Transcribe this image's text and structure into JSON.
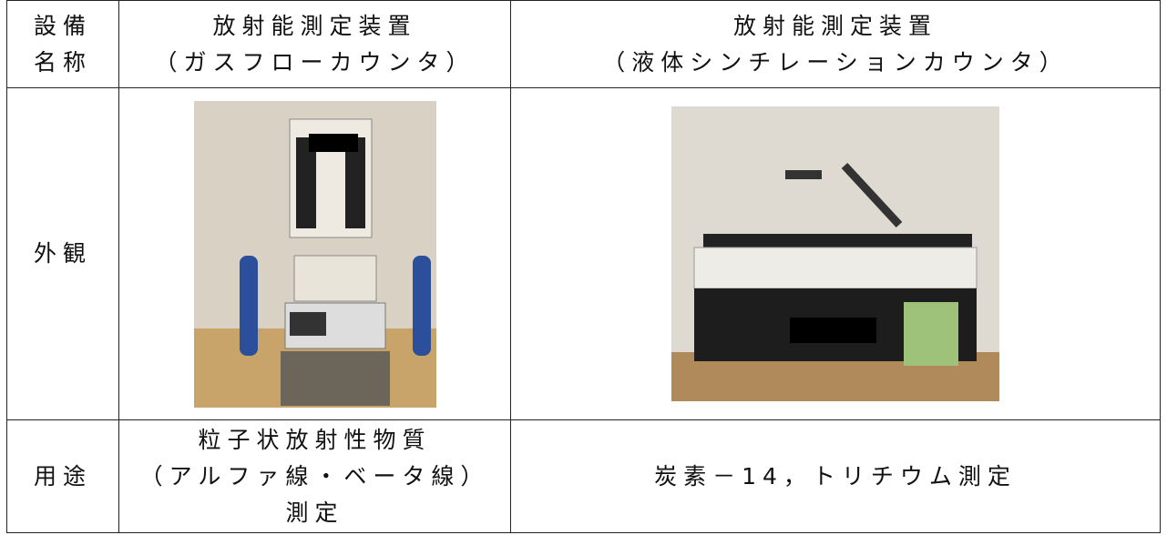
{
  "table": {
    "header": {
      "label": [
        "設備",
        "名称"
      ],
      "columns": [
        [
          "放射能測定装置",
          "（ガスフローカウンタ）"
        ],
        [
          "放射能測定装置",
          "（液体シンチレーションカウンタ）"
        ]
      ]
    },
    "appearance": {
      "label": "外観"
    },
    "usage": {
      "label": "用途",
      "columns": [
        [
          "粒子状放射性物質",
          "（アルファ線・ベータ線）",
          "測定"
        ],
        [
          "炭素－14，トリチウム測定"
        ]
      ]
    }
  }
}
